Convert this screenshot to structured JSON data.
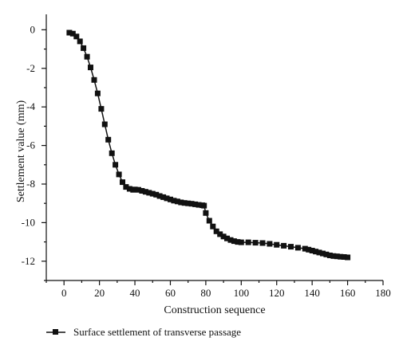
{
  "chart_data": {
    "type": "line",
    "title": "",
    "xlabel": "Construction sequence",
    "ylabel": "Settlement value (mm)",
    "xlim": [
      -10,
      180
    ],
    "ylim": [
      -13,
      0.8
    ],
    "xticks": [
      0,
      20,
      40,
      60,
      80,
      100,
      120,
      140,
      160,
      180
    ],
    "yticks": [
      0,
      -2,
      -4,
      -6,
      -8,
      -10,
      -12
    ],
    "xtick_labels": [
      "0",
      "20",
      "40",
      "60",
      "80",
      "100",
      "120",
      "140",
      "160",
      "180"
    ],
    "ytick_labels": [
      "0",
      "-2",
      "-4",
      "-6",
      "-8",
      "-10",
      "-12"
    ],
    "grid": false,
    "legend_position": "bottom-left",
    "series": [
      {
        "name": "Surface settlement of transverse passage",
        "color": "#111111",
        "marker": "square",
        "x": [
          3,
          5,
          7,
          9,
          11,
          13,
          15,
          17,
          19,
          21,
          23,
          25,
          27,
          29,
          31,
          33,
          35,
          37,
          39,
          40,
          42,
          44,
          46,
          48,
          50,
          52,
          54,
          56,
          58,
          60,
          62,
          64,
          66,
          68,
          70,
          72,
          74,
          76,
          78,
          79,
          80,
          82,
          84,
          86,
          88,
          90,
          92,
          94,
          96,
          98,
          100,
          104,
          108,
          112,
          116,
          120,
          124,
          128,
          132,
          136,
          138,
          140,
          142,
          144,
          146,
          148,
          150,
          152,
          154,
          156,
          158,
          160
        ],
        "y": [
          -0.15,
          -0.2,
          -0.35,
          -0.6,
          -0.95,
          -1.4,
          -1.95,
          -2.6,
          -3.3,
          -4.1,
          -4.9,
          -5.7,
          -6.4,
          -7.0,
          -7.5,
          -7.9,
          -8.15,
          -8.25,
          -8.3,
          -8.28,
          -8.3,
          -8.35,
          -8.4,
          -8.45,
          -8.5,
          -8.55,
          -8.62,
          -8.68,
          -8.74,
          -8.8,
          -8.86,
          -8.9,
          -8.95,
          -8.98,
          -9.0,
          -9.02,
          -9.05,
          -9.08,
          -9.1,
          -9.12,
          -9.5,
          -9.9,
          -10.2,
          -10.45,
          -10.6,
          -10.72,
          -10.82,
          -10.9,
          -10.96,
          -11.0,
          -11.02,
          -11.02,
          -11.04,
          -11.06,
          -11.1,
          -11.15,
          -11.2,
          -11.25,
          -11.3,
          -11.35,
          -11.4,
          -11.45,
          -11.5,
          -11.55,
          -11.6,
          -11.65,
          -11.7,
          -11.73,
          -11.75,
          -11.77,
          -11.78,
          -11.8
        ]
      }
    ]
  }
}
